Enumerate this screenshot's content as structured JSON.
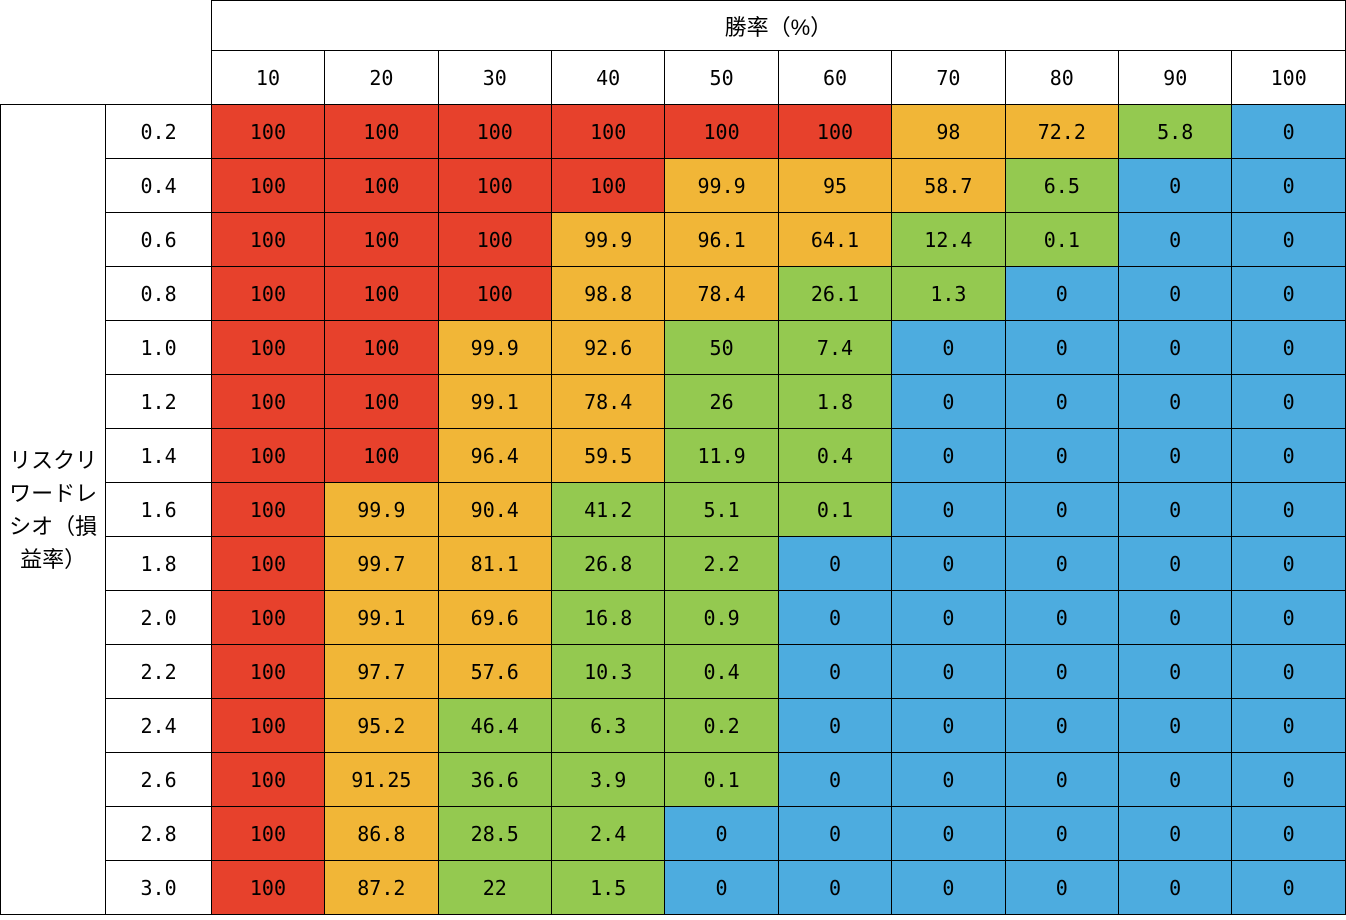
{
  "heatmap": {
    "type": "heatmap-table",
    "col_header_title": "勝率（%）",
    "row_header_title": "リスクリワードレシオ（損益率）",
    "column_ticks": [
      "10",
      "20",
      "30",
      "40",
      "50",
      "60",
      "70",
      "80",
      "90",
      "100"
    ],
    "row_ticks": [
      "0.2",
      "0.4",
      "0.6",
      "0.8",
      "1.0",
      "1.2",
      "1.4",
      "1.6",
      "1.8",
      "2.0",
      "2.2",
      "2.4",
      "2.6",
      "2.8",
      "3.0"
    ],
    "colors": {
      "red": "#e7412c",
      "orange": "#f1b637",
      "green": "#94c950",
      "blue": "#4dacdf"
    },
    "border_color": "#000000",
    "background_color": "#ffffff",
    "cell_fontsize": 20,
    "header_fontsize": 22,
    "font_family_mono": "Menlo, Consolas, monospace",
    "font_family_sans": "Hiragino Kaku Gothic Pro, Yu Gothic, Meiryo, sans-serif",
    "rows": [
      [
        [
          "100",
          "red"
        ],
        [
          "100",
          "red"
        ],
        [
          "100",
          "red"
        ],
        [
          "100",
          "red"
        ],
        [
          "100",
          "red"
        ],
        [
          "100",
          "red"
        ],
        [
          "98",
          "orange"
        ],
        [
          "72.2",
          "orange"
        ],
        [
          "5.8",
          "green"
        ],
        [
          "0",
          "blue"
        ]
      ],
      [
        [
          "100",
          "red"
        ],
        [
          "100",
          "red"
        ],
        [
          "100",
          "red"
        ],
        [
          "100",
          "red"
        ],
        [
          "99.9",
          "orange"
        ],
        [
          "95",
          "orange"
        ],
        [
          "58.7",
          "orange"
        ],
        [
          "6.5",
          "green"
        ],
        [
          "0",
          "blue"
        ],
        [
          "0",
          "blue"
        ]
      ],
      [
        [
          "100",
          "red"
        ],
        [
          "100",
          "red"
        ],
        [
          "100",
          "red"
        ],
        [
          "99.9",
          "orange"
        ],
        [
          "96.1",
          "orange"
        ],
        [
          "64.1",
          "orange"
        ],
        [
          "12.4",
          "green"
        ],
        [
          "0.1",
          "green"
        ],
        [
          "0",
          "blue"
        ],
        [
          "0",
          "blue"
        ]
      ],
      [
        [
          "100",
          "red"
        ],
        [
          "100",
          "red"
        ],
        [
          "100",
          "red"
        ],
        [
          "98.8",
          "orange"
        ],
        [
          "78.4",
          "orange"
        ],
        [
          "26.1",
          "green"
        ],
        [
          "1.3",
          "green"
        ],
        [
          "0",
          "blue"
        ],
        [
          "0",
          "blue"
        ],
        [
          "0",
          "blue"
        ]
      ],
      [
        [
          "100",
          "red"
        ],
        [
          "100",
          "red"
        ],
        [
          "99.9",
          "orange"
        ],
        [
          "92.6",
          "orange"
        ],
        [
          "50",
          "green"
        ],
        [
          "7.4",
          "green"
        ],
        [
          "0",
          "blue"
        ],
        [
          "0",
          "blue"
        ],
        [
          "0",
          "blue"
        ],
        [
          "0",
          "blue"
        ]
      ],
      [
        [
          "100",
          "red"
        ],
        [
          "100",
          "red"
        ],
        [
          "99.1",
          "orange"
        ],
        [
          "78.4",
          "orange"
        ],
        [
          "26",
          "green"
        ],
        [
          "1.8",
          "green"
        ],
        [
          "0",
          "blue"
        ],
        [
          "0",
          "blue"
        ],
        [
          "0",
          "blue"
        ],
        [
          "0",
          "blue"
        ]
      ],
      [
        [
          "100",
          "red"
        ],
        [
          "100",
          "red"
        ],
        [
          "96.4",
          "orange"
        ],
        [
          "59.5",
          "orange"
        ],
        [
          "11.9",
          "green"
        ],
        [
          "0.4",
          "green"
        ],
        [
          "0",
          "blue"
        ],
        [
          "0",
          "blue"
        ],
        [
          "0",
          "blue"
        ],
        [
          "0",
          "blue"
        ]
      ],
      [
        [
          "100",
          "red"
        ],
        [
          "99.9",
          "orange"
        ],
        [
          "90.4",
          "orange"
        ],
        [
          "41.2",
          "green"
        ],
        [
          "5.1",
          "green"
        ],
        [
          "0.1",
          "green"
        ],
        [
          "0",
          "blue"
        ],
        [
          "0",
          "blue"
        ],
        [
          "0",
          "blue"
        ],
        [
          "0",
          "blue"
        ]
      ],
      [
        [
          "100",
          "red"
        ],
        [
          "99.7",
          "orange"
        ],
        [
          "81.1",
          "orange"
        ],
        [
          "26.8",
          "green"
        ],
        [
          "2.2",
          "green"
        ],
        [
          "0",
          "blue"
        ],
        [
          "0",
          "blue"
        ],
        [
          "0",
          "blue"
        ],
        [
          "0",
          "blue"
        ],
        [
          "0",
          "blue"
        ]
      ],
      [
        [
          "100",
          "red"
        ],
        [
          "99.1",
          "orange"
        ],
        [
          "69.6",
          "orange"
        ],
        [
          "16.8",
          "green"
        ],
        [
          "0.9",
          "green"
        ],
        [
          "0",
          "blue"
        ],
        [
          "0",
          "blue"
        ],
        [
          "0",
          "blue"
        ],
        [
          "0",
          "blue"
        ],
        [
          "0",
          "blue"
        ]
      ],
      [
        [
          "100",
          "red"
        ],
        [
          "97.7",
          "orange"
        ],
        [
          "57.6",
          "orange"
        ],
        [
          "10.3",
          "green"
        ],
        [
          "0.4",
          "green"
        ],
        [
          "0",
          "blue"
        ],
        [
          "0",
          "blue"
        ],
        [
          "0",
          "blue"
        ],
        [
          "0",
          "blue"
        ],
        [
          "0",
          "blue"
        ]
      ],
      [
        [
          "100",
          "red"
        ],
        [
          "95.2",
          "orange"
        ],
        [
          "46.4",
          "green"
        ],
        [
          "6.3",
          "green"
        ],
        [
          "0.2",
          "green"
        ],
        [
          "0",
          "blue"
        ],
        [
          "0",
          "blue"
        ],
        [
          "0",
          "blue"
        ],
        [
          "0",
          "blue"
        ],
        [
          "0",
          "blue"
        ]
      ],
      [
        [
          "100",
          "red"
        ],
        [
          "91.25",
          "orange"
        ],
        [
          "36.6",
          "green"
        ],
        [
          "3.9",
          "green"
        ],
        [
          "0.1",
          "green"
        ],
        [
          "0",
          "blue"
        ],
        [
          "0",
          "blue"
        ],
        [
          "0",
          "blue"
        ],
        [
          "0",
          "blue"
        ],
        [
          "0",
          "blue"
        ]
      ],
      [
        [
          "100",
          "red"
        ],
        [
          "86.8",
          "orange"
        ],
        [
          "28.5",
          "green"
        ],
        [
          "2.4",
          "green"
        ],
        [
          "0",
          "blue"
        ],
        [
          "0",
          "blue"
        ],
        [
          "0",
          "blue"
        ],
        [
          "0",
          "blue"
        ],
        [
          "0",
          "blue"
        ],
        [
          "0",
          "blue"
        ]
      ],
      [
        [
          "100",
          "red"
        ],
        [
          "87.2",
          "orange"
        ],
        [
          "22",
          "green"
        ],
        [
          "1.5",
          "green"
        ],
        [
          "0",
          "blue"
        ],
        [
          "0",
          "blue"
        ],
        [
          "0",
          "blue"
        ],
        [
          "0",
          "blue"
        ],
        [
          "0",
          "blue"
        ],
        [
          "0",
          "blue"
        ]
      ]
    ]
  }
}
